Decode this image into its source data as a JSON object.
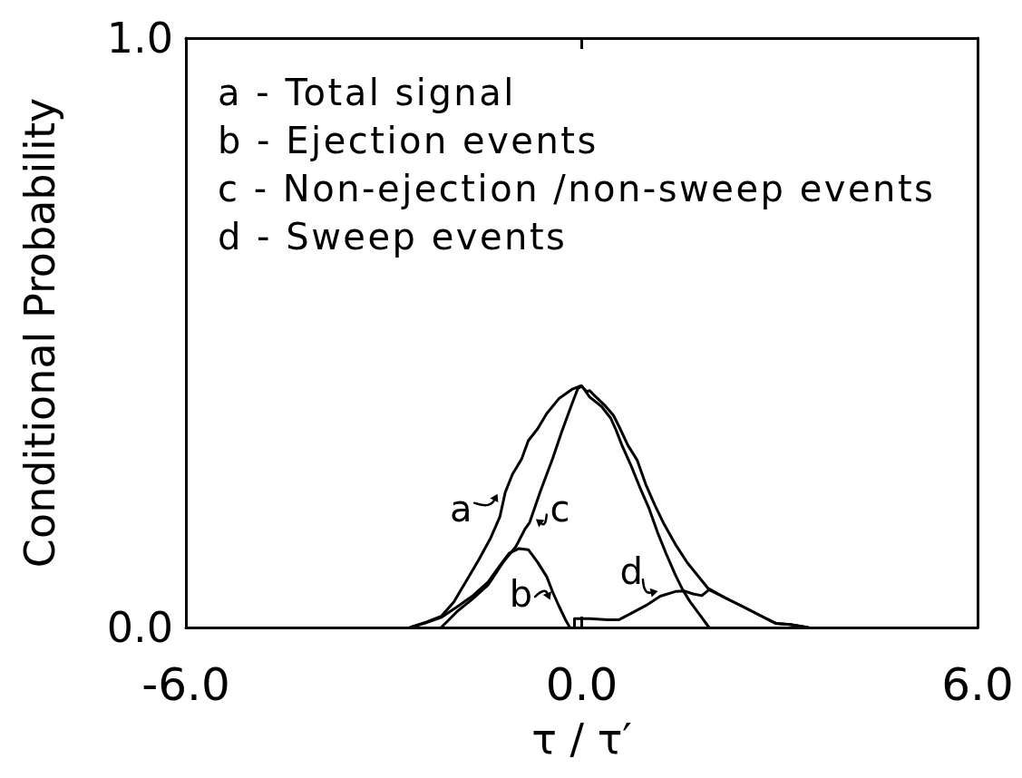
{
  "chart_data": {
    "type": "line",
    "xlabel": "τ / τ′",
    "ylabel": "Conditional Probability",
    "xlim": [
      -6,
      6
    ],
    "xticks": [
      {
        "value": -6,
        "label": "-6.0"
      },
      {
        "value": 0,
        "label": "0.0"
      },
      {
        "value": 6,
        "label": "6.0"
      }
    ],
    "ylim": [
      0,
      1
    ],
    "yticks": [
      {
        "value": 0,
        "label": "0.0"
      },
      {
        "value": 1,
        "label": "1.0"
      }
    ],
    "marker": "none",
    "line_style": "solid",
    "annotations": [
      "a - Total signal",
      "b - Ejection events",
      "c - Non-ejection /non-sweep events",
      "d - Sweep events",
      {
        "text": "a",
        "x": -1.2,
        "y": 0.23
      },
      {
        "text": "b",
        "x": -0.4,
        "y": 0.045
      },
      {
        "text": "c",
        "x": -0.77,
        "y": 0.18
      },
      {
        "text": "d",
        "x": 1.22,
        "y": 0.056
      }
    ],
    "series": [
      {
        "color": "#000000",
        "x": [
          -2.6,
          -2.36,
          -2.13,
          -1.94,
          -1.75,
          -1.56,
          -1.38,
          -1.24,
          -1.16,
          -1.05,
          -0.91,
          -0.81,
          -0.67,
          -0.53,
          -0.34,
          -0.15,
          -0.01,
          0.08,
          0.12,
          0.17,
          0.34,
          0.48,
          0.57,
          0.7,
          0.84,
          0.97,
          1.11,
          1.24,
          1.42,
          1.6,
          1.78,
          1.91,
          2.18,
          2.45,
          2.71,
          2.94,
          3.16,
          3.43
        ],
        "values": [
          0,
          0.009,
          0.019,
          0.043,
          0.079,
          0.115,
          0.152,
          0.188,
          0.229,
          0.26,
          0.286,
          0.317,
          0.337,
          0.363,
          0.389,
          0.404,
          0.41,
          0.4,
          0.402,
          0.396,
          0.378,
          0.36,
          0.34,
          0.309,
          0.284,
          0.243,
          0.207,
          0.177,
          0.141,
          0.11,
          0.085,
          0.067,
          0.05,
          0.035,
          0.02,
          0.007,
          0.005,
          0
        ]
      },
      {
        "color": "#000000",
        "x": [
          -2.6,
          -2.36,
          -2.13,
          -1.89,
          -1.66,
          -1.42,
          -1.24,
          -1.1,
          -0.95,
          -0.81,
          -0.67,
          -0.53,
          -0.44,
          -0.34,
          -0.25,
          -0.18
        ],
        "values": [
          0,
          0.008,
          0.017,
          0.035,
          0.053,
          0.077,
          0.105,
          0.126,
          0.134,
          0.132,
          0.111,
          0.086,
          0.06,
          0.035,
          0.014,
          0
        ]
      },
      {
        "color": "#000000",
        "x": [
          -2.13,
          -1.89,
          -1.66,
          -1.42,
          -1.19,
          -1.0,
          -0.86,
          -0.79,
          -0.63,
          -0.44,
          -0.3,
          -0.15,
          -0.06,
          0.0,
          0.12,
          0.3,
          0.44,
          0.52,
          0.61,
          0.75,
          0.88,
          1.02,
          1.15,
          1.28,
          1.42,
          1.53,
          1.64,
          1.78,
          1.93
        ],
        "values": [
          0,
          0.027,
          0.048,
          0.072,
          0.111,
          0.137,
          0.167,
          0.178,
          0.23,
          0.287,
          0.333,
          0.379,
          0.405,
          0.41,
          0.391,
          0.375,
          0.355,
          0.335,
          0.309,
          0.274,
          0.238,
          0.202,
          0.161,
          0.125,
          0.089,
          0.064,
          0.044,
          0.023,
          0
        ]
      },
      {
        "color": "#000000",
        "x": [
          -0.11,
          -0.11,
          0.12,
          0.39,
          0.56,
          0.75,
          0.97,
          1.19,
          1.42,
          1.55,
          1.69,
          1.82,
          1.93,
          2.18,
          2.45,
          2.71,
          2.94,
          3.16,
          3.43
        ],
        "values": [
          0,
          0.015,
          0.015,
          0.013,
          0.013,
          0.024,
          0.037,
          0.053,
          0.061,
          0.062,
          0.057,
          0.054,
          0.064,
          0.05,
          0.035,
          0.02,
          0.007,
          0.005,
          0
        ]
      }
    ]
  }
}
